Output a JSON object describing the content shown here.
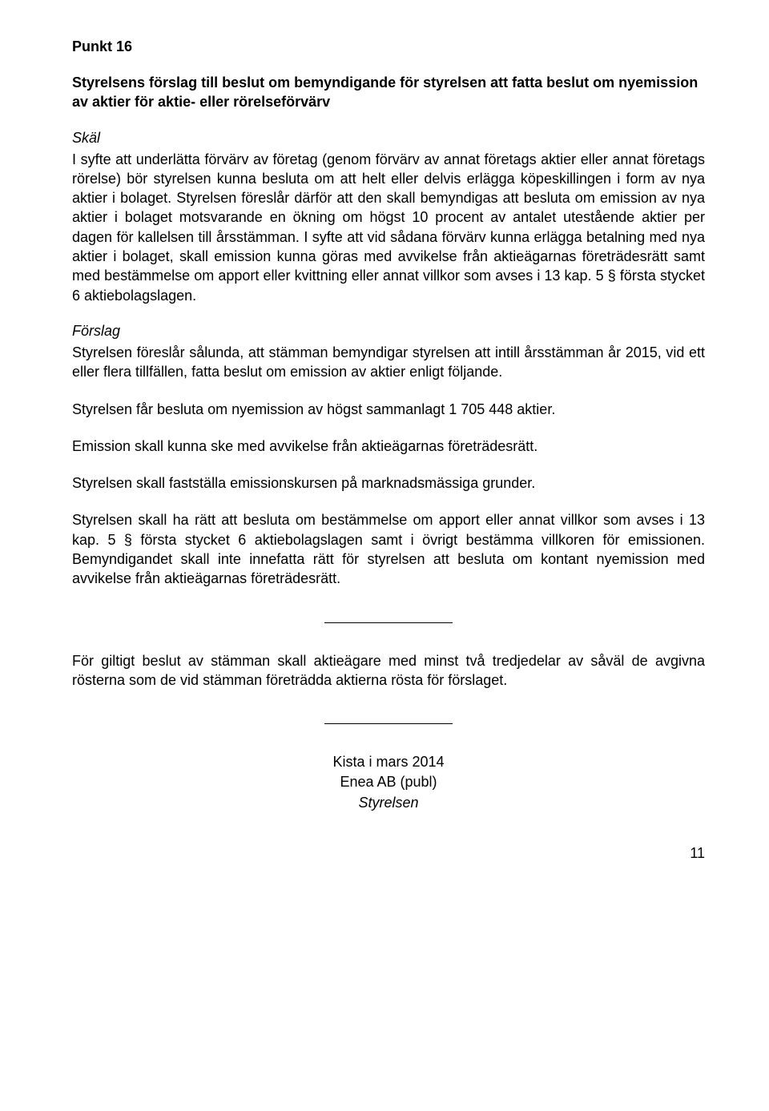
{
  "doc": {
    "heading": "Punkt 16",
    "subheading": "Styrelsens förslag till beslut om bemyndigande för styrelsen att fatta beslut om nyemission av aktier för aktie- eller rörelseförvärv",
    "section1": {
      "title": "Skäl",
      "p1": "I syfte att underlätta förvärv av företag (genom förvärv av annat företags aktier eller annat företags rörelse) bör styrelsen kunna besluta om att helt eller delvis erlägga köpeskillingen i form av nya aktier i bolaget. Styrelsen föreslår därför att den skall bemyndigas att besluta om emission av nya aktier i bolaget motsvarande en ökning om högst 10 procent av antalet utestående aktier per dagen för kallelsen till årsstämman. I syfte att vid sådana förvärv kunna erlägga betalning med nya aktier i bolaget, skall emission kunna göras med avvikelse från aktieägarnas företrädesrätt samt med bestämmelse om apport eller kvittning eller annat villkor som avses i 13 kap. 5 § första stycket 6 aktiebolagslagen."
    },
    "section2": {
      "title": "Förslag",
      "p1": "Styrelsen föreslår sålunda, att stämman bemyndigar styrelsen att intill årsstämman år 2015, vid ett eller flera tillfällen, fatta beslut om emission av aktier enligt följande.",
      "p2": "Styrelsen får besluta om nyemission av högst sammanlagt 1 705 448 aktier.",
      "p3": "Emission skall kunna ske med avvikelse från aktieägarnas företrädesrätt.",
      "p4": "Styrelsen skall fastställa emissionskursen på marknadsmässiga grunder.",
      "p5": "Styrelsen skall ha rätt att besluta om bestämmelse om apport eller annat villkor som avses i 13 kap. 5 § första stycket 6 aktiebolagslagen samt i övrigt bestämma villkoren för emissionen. Bemyndigandet skall inte innefatta rätt för styrelsen att besluta om kontant nyemission med avvikelse från aktieägarnas företrädesrätt."
    },
    "closing": "För giltigt beslut av stämman skall aktieägare med minst två tredjedelar av såväl de avgivna rösterna som de vid stämman företrädda aktierna rösta för förslaget.",
    "footer": {
      "line1": "Kista i mars 2014",
      "line2": "Enea AB (publ)",
      "line3": "Styrelsen"
    },
    "page_number": "11"
  }
}
